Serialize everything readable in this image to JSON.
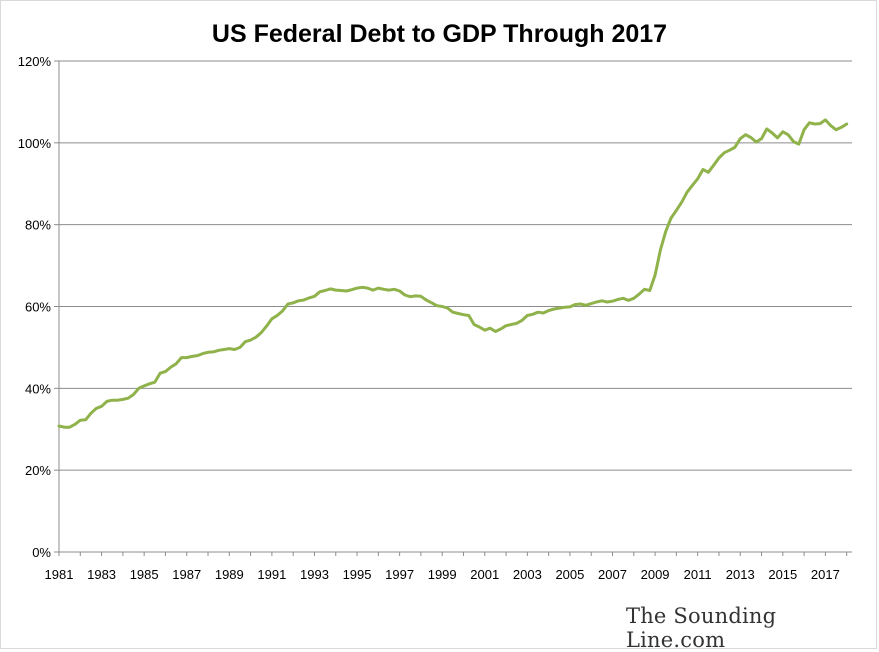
{
  "chart_data": {
    "type": "line",
    "title": "US Federal Debt to GDP Through 2017",
    "xlabel": "",
    "ylabel": "",
    "x_ticks": [
      "1981",
      "1983",
      "1985",
      "1987",
      "1989",
      "1991",
      "1993",
      "1995",
      "1997",
      "1999",
      "2001",
      "2003",
      "2005",
      "2007",
      "2009",
      "2011",
      "2013",
      "2015",
      "2017"
    ],
    "y_ticks": [
      "0%",
      "20%",
      "40%",
      "60%",
      "80%",
      "100%",
      "120%"
    ],
    "ylim": [
      0,
      120
    ],
    "xlim": [
      1981,
      2018.25
    ],
    "grid": "horizontal",
    "line_color": "#8fb24b",
    "series": [
      {
        "x": [
          1981.0,
          1981.25,
          1981.5,
          1981.75,
          1982.0,
          1982.25,
          1982.5,
          1982.75,
          1983.0,
          1983.25,
          1983.5,
          1983.75,
          1984.0,
          1984.25,
          1984.5,
          1984.75,
          1985.0,
          1985.25,
          1985.5,
          1985.75,
          1986.0,
          1986.25,
          1986.5,
          1986.75,
          1987.0,
          1987.25,
          1987.5,
          1987.75,
          1988.0,
          1988.25,
          1988.5,
          1988.75,
          1989.0,
          1989.25,
          1989.5,
          1989.75,
          1990.0,
          1990.25,
          1990.5,
          1990.75,
          1991.0,
          1991.25,
          1991.5,
          1991.75,
          1992.0,
          1992.25,
          1992.5,
          1992.75,
          1993.0,
          1993.25,
          1993.5,
          1993.75,
          1994.0,
          1994.25,
          1994.5,
          1994.75,
          1995.0,
          1995.25,
          1995.5,
          1995.75,
          1996.0,
          1996.25,
          1996.5,
          1996.75,
          1997.0,
          1997.25,
          1997.5,
          1997.75,
          1998.0,
          1998.25,
          1998.5,
          1998.75,
          1999.0,
          1999.25,
          1999.5,
          1999.75,
          2000.0,
          2000.25,
          2000.5,
          2000.75,
          2001.0,
          2001.25,
          2001.5,
          2001.75,
          2002.0,
          2002.25,
          2002.5,
          2002.75,
          2003.0,
          2003.25,
          2003.5,
          2003.75,
          2004.0,
          2004.25,
          2004.5,
          2004.75,
          2005.0,
          2005.25,
          2005.5,
          2005.75,
          2006.0,
          2006.25,
          2006.5,
          2006.75,
          2007.0,
          2007.25,
          2007.5,
          2007.75,
          2008.0,
          2008.25,
          2008.5,
          2008.75,
          2009.0,
          2009.25,
          2009.5,
          2009.75,
          2010.0,
          2010.25,
          2010.5,
          2010.75,
          2011.0,
          2011.25,
          2011.5,
          2011.75,
          2012.0,
          2012.25,
          2012.5,
          2012.75,
          2013.0,
          2013.25,
          2013.5,
          2013.75,
          2014.0,
          2014.25,
          2014.5,
          2014.75,
          2015.0,
          2015.25,
          2015.5,
          2015.75,
          2016.0,
          2016.25,
          2016.5,
          2016.75,
          2017.0,
          2017.25,
          2017.5,
          2017.75,
          2018.0
        ],
        "values": [
          30.8,
          30.5,
          30.5,
          31.2,
          32.2,
          32.3,
          33.9,
          35.1,
          35.6,
          36.8,
          37.1,
          37.1,
          37.3,
          37.6,
          38.5,
          40.0,
          40.6,
          41.1,
          41.5,
          43.7,
          44.1,
          45.2,
          46.0,
          47.5,
          47.5,
          47.8,
          48.0,
          48.5,
          48.8,
          48.9,
          49.3,
          49.5,
          49.7,
          49.5,
          50.0,
          51.4,
          51.8,
          52.5,
          53.6,
          55.2,
          57.0,
          57.8,
          58.9,
          60.6,
          60.9,
          61.4,
          61.6,
          62.1,
          62.5,
          63.6,
          63.9,
          64.3,
          64.0,
          63.9,
          63.8,
          64.1,
          64.5,
          64.7,
          64.5,
          64.0,
          64.5,
          64.2,
          64.0,
          64.2,
          63.8,
          62.8,
          62.4,
          62.6,
          62.5,
          61.6,
          60.9,
          60.2,
          60.0,
          59.6,
          58.6,
          58.3,
          58.0,
          57.8,
          55.6,
          55.0,
          54.2,
          54.7,
          53.9,
          54.5,
          55.3,
          55.6,
          55.9,
          56.6,
          57.8,
          58.1,
          58.6,
          58.4,
          59.0,
          59.4,
          59.6,
          59.8,
          59.9,
          60.5,
          60.6,
          60.3,
          60.7,
          61.1,
          61.4,
          61.1,
          61.3,
          61.7,
          62.0,
          61.5,
          62.0,
          63.0,
          64.2,
          63.9,
          67.7,
          73.8,
          78.3,
          81.6,
          83.5,
          85.5,
          87.9,
          89.6,
          91.2,
          93.5,
          92.8,
          94.5,
          96.3,
          97.6,
          98.2,
          98.9,
          101.0,
          102.0,
          101.3,
          100.2,
          101.0,
          103.4,
          102.4,
          101.2,
          102.7,
          102.0,
          100.3,
          99.7,
          103.2,
          104.9,
          104.6,
          104.7,
          105.6,
          104.2,
          103.2,
          103.8,
          104.6
        ]
      }
    ]
  },
  "branding": {
    "text": "The Sounding Line.com"
  }
}
